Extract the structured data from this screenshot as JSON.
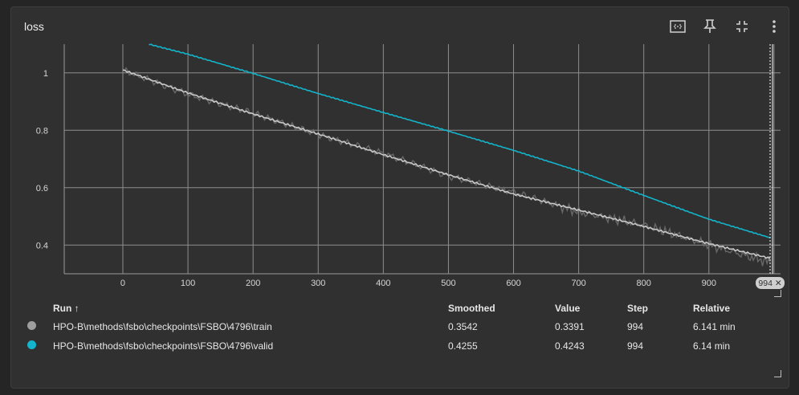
{
  "card": {
    "title": "loss",
    "tools": [
      {
        "icon": "fit-domain-icon"
      },
      {
        "icon": "pin-icon"
      },
      {
        "icon": "collapse-icon"
      },
      {
        "icon": "more-vert-icon"
      }
    ]
  },
  "chart_data": {
    "type": "line",
    "title": "loss",
    "xlabel": "",
    "ylabel": "",
    "xlim": [
      -90,
      1010
    ],
    "ylim": [
      0.3,
      1.1
    ],
    "x_ticks": [
      "0",
      "100",
      "200",
      "300",
      "400",
      "500",
      "600",
      "700",
      "800",
      "900"
    ],
    "y_ticks": [
      "0.4",
      "0.6",
      "0.8",
      "1"
    ],
    "grid": true,
    "hover_step": "994 ✕",
    "series": [
      {
        "name": "HPO-B\\methods\\fsbo\\checkpoints\\FSBO\\4796\\train",
        "color": "#c8c8c8",
        "x": [
          0,
          100,
          200,
          300,
          400,
          500,
          600,
          700,
          800,
          900,
          994
        ],
        "y": [
          1.01,
          0.93,
          0.857,
          0.787,
          0.715,
          0.645,
          0.578,
          0.522,
          0.465,
          0.405,
          0.354
        ],
        "raw_y": [
          1.01,
          0.925,
          0.86,
          0.785,
          0.72,
          0.64,
          0.585,
          0.515,
          0.47,
          0.4,
          0.339
        ]
      },
      {
        "name": "HPO-B\\methods\\fsbo\\checkpoints\\FSBO\\4796\\valid",
        "color": "#12b5cb",
        "x": [
          40,
          100,
          200,
          300,
          400,
          500,
          600,
          700,
          800,
          900,
          994
        ],
        "y": [
          1.1,
          1.065,
          0.998,
          0.928,
          0.862,
          0.797,
          0.73,
          0.658,
          0.573,
          0.49,
          0.4255
        ]
      }
    ]
  },
  "table": {
    "headers": {
      "run": "Run ↑",
      "smoothed": "Smoothed",
      "value": "Value",
      "step": "Step",
      "relative": "Relative"
    },
    "rows": [
      {
        "color": "#9e9e9e",
        "run": "HPO-B\\methods\\fsbo\\checkpoints\\FSBO\\4796\\train",
        "smoothed": "0.3542",
        "value": "0.3391",
        "step": "994",
        "relative": "6.141 min"
      },
      {
        "color": "#12b5cb",
        "run": "HPO-B\\methods\\fsbo\\checkpoints\\FSBO\\4796\\valid",
        "smoothed": "0.4255",
        "value": "0.4243",
        "step": "994",
        "relative": "6.14 min"
      }
    ]
  }
}
